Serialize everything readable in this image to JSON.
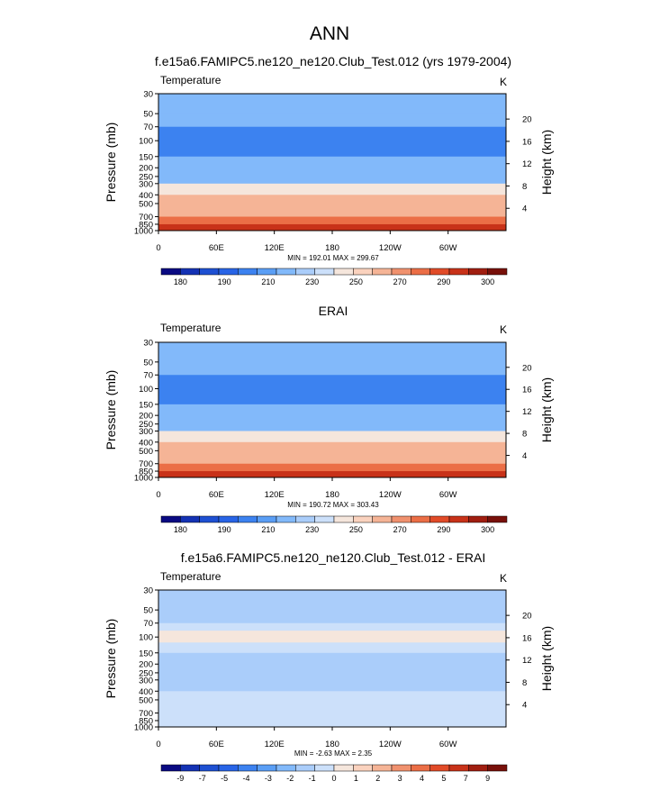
{
  "page": {
    "main_title": "ANN"
  },
  "panels": [
    {
      "title": "f.e15a6.FAMIPC5.ne120_ne120.Club_Test.012 (yrs 1979-2004)",
      "field": "Temperature",
      "units": "K",
      "stats": "MIN = 192.01  MAX = 299.67",
      "colorbar": {
        "colors": [
          "#0a0a82",
          "#1432b4",
          "#1e50d2",
          "#2864e6",
          "#3c82f0",
          "#5a9ef5",
          "#82b9fa",
          "#aacdfa",
          "#cce0fa",
          "#f5e6dc",
          "#fad2be",
          "#f5b496",
          "#f0916e",
          "#eb6e46",
          "#e14b28",
          "#c83219",
          "#a01e10",
          "#78100a"
        ],
        "labels": [
          "180",
          "190",
          "210",
          "230",
          "250",
          "270",
          "290",
          "300"
        ]
      }
    },
    {
      "title": "ERAI",
      "field": "Temperature",
      "units": "K",
      "stats": "MIN = 190.72  MAX = 303.43",
      "colorbar": {
        "colors": [
          "#0a0a82",
          "#1432b4",
          "#1e50d2",
          "#2864e6",
          "#3c82f0",
          "#5a9ef5",
          "#82b9fa",
          "#aacdfa",
          "#cce0fa",
          "#f5e6dc",
          "#fad2be",
          "#f5b496",
          "#f0916e",
          "#eb6e46",
          "#e14b28",
          "#c83219",
          "#a01e10",
          "#78100a"
        ],
        "labels": [
          "180",
          "190",
          "210",
          "230",
          "250",
          "270",
          "290",
          "300"
        ]
      }
    },
    {
      "title": "f.e15a6.FAMIPC5.ne120_ne120.Club_Test.012 - ERAI",
      "field": "Temperature",
      "units": "K",
      "stats": "MIN =  -2.63  MAX =  2.35",
      "colorbar": {
        "colors": [
          "#0a0a82",
          "#1432b4",
          "#1e50d2",
          "#2864e6",
          "#3c82f0",
          "#5a9ef5",
          "#82b9fa",
          "#aacdfa",
          "#cce0fa",
          "#f5e6dc",
          "#fad2be",
          "#f5b496",
          "#f0916e",
          "#eb6e46",
          "#e14b28",
          "#c83219",
          "#a01e10",
          "#78100a"
        ],
        "labels": [
          "-9",
          "-7",
          "-5",
          "-4",
          "-3",
          "-2",
          "-1",
          "0",
          "1",
          "2",
          "3",
          "4",
          "5",
          "7",
          "9"
        ]
      }
    }
  ],
  "chart_data": [
    {
      "type": "heatmap",
      "title": "f.e15a6.FAMIPC5.ne120_ne120.Club_Test.012 (yrs 1979-2004)",
      "subtitle_left": "Temperature",
      "subtitle_right": "K",
      "xlabel": "",
      "ylabel": "Pressure (mb)",
      "ylabel_right": "Height (km)",
      "x_ticks": [
        "0",
        "60E",
        "120E",
        "180",
        "120W",
        "60W"
      ],
      "y_ticks": [
        "30",
        "50",
        "70",
        "100",
        "150",
        "200",
        "250",
        "300",
        "400",
        "500",
        "700",
        "850",
        "1000"
      ],
      "y_right_ticks": [
        "20",
        "16",
        "12",
        "8",
        "4"
      ],
      "xlim": [
        0,
        360
      ],
      "ylim": [
        1000,
        30
      ],
      "stats": {
        "min": 192.01,
        "max": 299.67
      },
      "levels": [
        180,
        190,
        210,
        230,
        250,
        270,
        290,
        300
      ],
      "bands": [
        {
          "p_top": 30,
          "p_bot": 50,
          "value": 225
        },
        {
          "p_top": 50,
          "p_bot": 70,
          "value": 215
        },
        {
          "p_top": 70,
          "p_bot": 150,
          "value": 205
        },
        {
          "p_top": 150,
          "p_bot": 200,
          "value": 212
        },
        {
          "p_top": 200,
          "p_bot": 250,
          "value": 220
        },
        {
          "p_top": 250,
          "p_bot": 300,
          "value": 228
        },
        {
          "p_top": 300,
          "p_bot": 400,
          "value": 242
        },
        {
          "p_top": 400,
          "p_bot": 500,
          "value": 252
        },
        {
          "p_top": 500,
          "p_bot": 700,
          "value": 265
        },
        {
          "p_top": 700,
          "p_bot": 850,
          "value": 282
        },
        {
          "p_top": 850,
          "p_bot": 1000,
          "value": 296
        }
      ]
    },
    {
      "type": "heatmap",
      "title": "ERAI",
      "subtitle_left": "Temperature",
      "subtitle_right": "K",
      "xlabel": "",
      "ylabel": "Pressure (mb)",
      "ylabel_right": "Height (km)",
      "x_ticks": [
        "0",
        "60E",
        "120E",
        "180",
        "120W",
        "60W"
      ],
      "y_ticks": [
        "30",
        "50",
        "70",
        "100",
        "150",
        "200",
        "250",
        "300",
        "400",
        "500",
        "700",
        "850",
        "1000"
      ],
      "y_right_ticks": [
        "20",
        "16",
        "12",
        "8",
        "4"
      ],
      "xlim": [
        0,
        360
      ],
      "ylim": [
        1000,
        30
      ],
      "stats": {
        "min": 190.72,
        "max": 303.43
      },
      "levels": [
        180,
        190,
        210,
        230,
        250,
        270,
        290,
        300
      ],
      "bands": [
        {
          "p_top": 30,
          "p_bot": 50,
          "value": 225
        },
        {
          "p_top": 50,
          "p_bot": 70,
          "value": 215
        },
        {
          "p_top": 70,
          "p_bot": 150,
          "value": 204
        },
        {
          "p_top": 150,
          "p_bot": 200,
          "value": 212
        },
        {
          "p_top": 200,
          "p_bot": 250,
          "value": 220
        },
        {
          "p_top": 250,
          "p_bot": 300,
          "value": 228
        },
        {
          "p_top": 300,
          "p_bot": 400,
          "value": 242
        },
        {
          "p_top": 400,
          "p_bot": 500,
          "value": 252
        },
        {
          "p_top": 500,
          "p_bot": 700,
          "value": 266
        },
        {
          "p_top": 700,
          "p_bot": 850,
          "value": 284
        },
        {
          "p_top": 850,
          "p_bot": 1000,
          "value": 298
        }
      ]
    },
    {
      "type": "heatmap",
      "title": "f.e15a6.FAMIPC5.ne120_ne120.Club_Test.012 - ERAI",
      "subtitle_left": "Temperature",
      "subtitle_right": "K",
      "xlabel": "",
      "ylabel": "Pressure (mb)",
      "ylabel_right": "Height (km)",
      "x_ticks": [
        "0",
        "60E",
        "120E",
        "180",
        "120W",
        "60W"
      ],
      "y_ticks": [
        "30",
        "50",
        "70",
        "100",
        "150",
        "200",
        "250",
        "300",
        "400",
        "500",
        "700",
        "850",
        "1000"
      ],
      "y_right_ticks": [
        "20",
        "16",
        "12",
        "8",
        "4"
      ],
      "xlim": [
        0,
        360
      ],
      "ylim": [
        1000,
        30
      ],
      "stats": {
        "min": -2.63,
        "max": 2.35
      },
      "levels": [
        -9,
        -7,
        -5,
        -4,
        -3,
        -2,
        -1,
        0,
        1,
        2,
        3,
        4,
        5,
        7,
        9
      ],
      "bands": [
        {
          "p_top": 30,
          "p_bot": 70,
          "value": -1.5
        },
        {
          "p_top": 70,
          "p_bot": 85,
          "value": -0.5
        },
        {
          "p_top": 85,
          "p_bot": 115,
          "value": 0.5
        },
        {
          "p_top": 115,
          "p_bot": 150,
          "value": -0.5
        },
        {
          "p_top": 150,
          "p_bot": 400,
          "value": -1.5
        },
        {
          "p_top": 400,
          "p_bot": 1000,
          "value": -0.5
        }
      ]
    }
  ]
}
